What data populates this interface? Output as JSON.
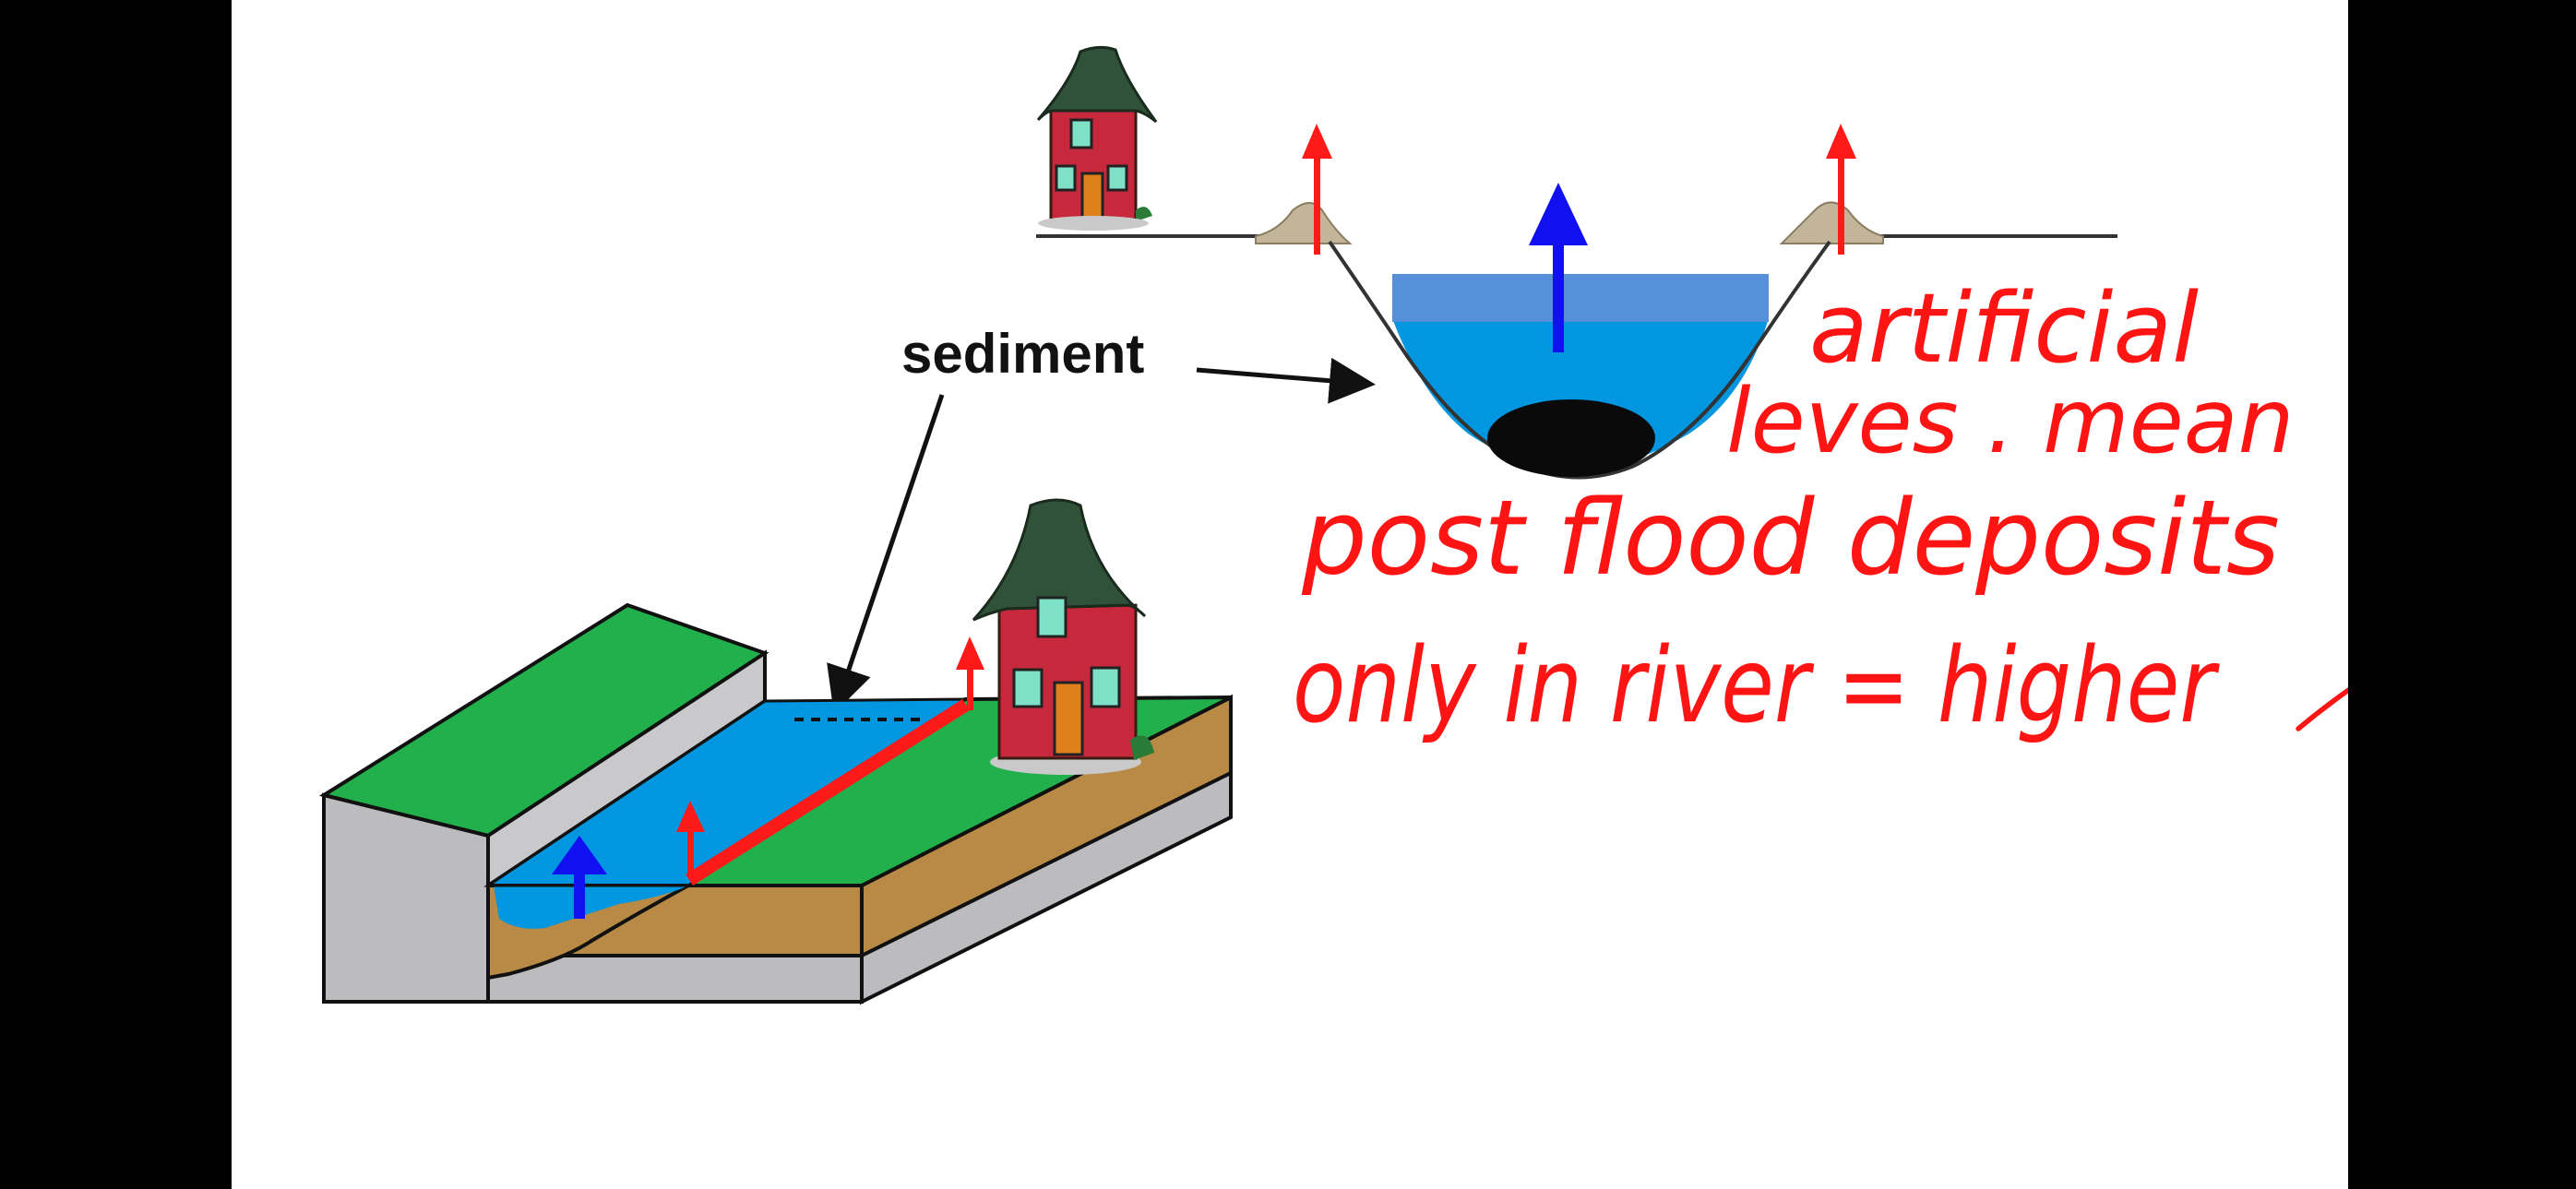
{
  "diagram": {
    "sediment_label": "sediment",
    "handwritten_notes": [
      "artificial",
      "leves . mean",
      "post flood deposits",
      "only in river = higher"
    ],
    "colors": {
      "water": "#0096e0",
      "water_raised": "#5590d8",
      "grass": "#21b04b",
      "soil": "#b88a45",
      "rock": "#bcbcbe",
      "levee_arrow": "#ff1a1a",
      "water_arrow": "#1010f0",
      "ink": "#ff1414"
    }
  }
}
